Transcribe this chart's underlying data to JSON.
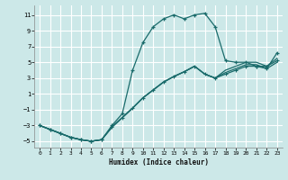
{
  "xlabel": "Humidex (Indice chaleur)",
  "bg_color": "#cce8e8",
  "grid_color": "#ffffff",
  "line_color": "#1a6b6b",
  "xlim": [
    -0.5,
    23.5
  ],
  "ylim": [
    -5.8,
    12.2
  ],
  "xticks": [
    0,
    1,
    2,
    3,
    4,
    5,
    6,
    7,
    8,
    9,
    10,
    11,
    12,
    13,
    14,
    15,
    16,
    17,
    18,
    19,
    20,
    21,
    22,
    23
  ],
  "yticks": [
    -5,
    -3,
    -1,
    1,
    3,
    5,
    7,
    9,
    11
  ],
  "line1_x": [
    0,
    1,
    2,
    3,
    4,
    5,
    6,
    7,
    8,
    9,
    10,
    11,
    12,
    13,
    14,
    15,
    16,
    17,
    18,
    19,
    20,
    21,
    22,
    23
  ],
  "line1_y": [
    -3,
    -3.5,
    -4,
    -4.5,
    -4.8,
    -5,
    -4.8,
    -3,
    -1.5,
    4,
    7.5,
    9.5,
    10.5,
    11,
    10.5,
    11,
    11.2,
    9.5,
    5.2,
    5.0,
    5.0,
    4.5,
    4.2,
    6.2
  ],
  "line2_x": [
    0,
    1,
    2,
    3,
    4,
    5,
    6,
    7,
    8,
    9,
    10,
    11,
    12,
    13,
    14,
    15,
    16,
    17,
    18,
    19,
    20,
    21,
    22,
    23
  ],
  "line2_y": [
    -3,
    -3.5,
    -4,
    -4.5,
    -4.8,
    -5,
    -4.8,
    -3.2,
    -2.0,
    -0.8,
    0.5,
    1.5,
    2.5,
    3.2,
    3.8,
    4.5,
    3.5,
    3.0,
    3.5,
    4.0,
    4.5,
    4.5,
    4.5,
    5.2
  ],
  "line3_x": [
    0,
    1,
    2,
    3,
    4,
    5,
    6,
    7,
    8,
    9,
    10,
    11,
    12,
    13,
    14,
    15,
    16,
    17,
    18,
    19,
    20,
    21,
    22,
    23
  ],
  "line3_y": [
    -3,
    -3.5,
    -4,
    -4.5,
    -4.8,
    -5,
    -4.8,
    -3.2,
    -2.0,
    -0.8,
    0.5,
    1.5,
    2.5,
    3.2,
    3.8,
    4.5,
    3.5,
    3.0,
    3.7,
    4.2,
    4.7,
    4.7,
    4.2,
    5.0
  ],
  "line4_x": [
    0,
    1,
    2,
    3,
    4,
    5,
    6,
    7,
    8,
    9,
    10,
    11,
    12,
    13,
    14,
    15,
    16,
    17,
    18,
    19,
    20,
    21,
    22,
    23
  ],
  "line4_y": [
    -3,
    -3.5,
    -4,
    -4.5,
    -4.8,
    -5,
    -4.8,
    -3.2,
    -2.0,
    -0.8,
    0.5,
    1.5,
    2.5,
    3.2,
    3.8,
    4.5,
    3.5,
    3.0,
    4.0,
    4.5,
    5.0,
    5.0,
    4.5,
    5.5
  ]
}
